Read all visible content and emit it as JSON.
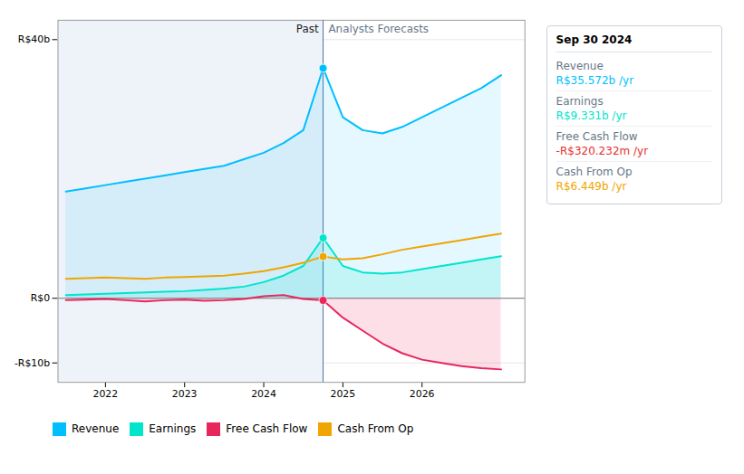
{
  "chart_data": {
    "type": "line",
    "x": [
      2021.5,
      2021.75,
      2022.0,
      2022.25,
      2022.5,
      2022.75,
      2023.0,
      2023.25,
      2023.5,
      2023.75,
      2024.0,
      2024.25,
      2024.5,
      2024.75,
      2025.0,
      2025.25,
      2025.5,
      2025.75,
      2026.0,
      2026.25,
      2026.5,
      2026.75,
      2027.0
    ],
    "series": [
      {
        "name": "Revenue",
        "color": "#00bfff",
        "values": [
          16.5,
          17.0,
          17.5,
          18.0,
          18.5,
          19.0,
          19.5,
          20.0,
          20.5,
          21.5,
          22.5,
          24.0,
          26.0,
          35.572,
          28.0,
          26.0,
          25.5,
          26.5,
          28.0,
          29.5,
          31.0,
          32.5,
          34.5
        ]
      },
      {
        "name": "Earnings",
        "color": "#00e5cc",
        "values": [
          0.5,
          0.6,
          0.7,
          0.8,
          0.9,
          1.0,
          1.1,
          1.3,
          1.5,
          1.8,
          2.5,
          3.5,
          5.0,
          9.331,
          5.0,
          4.0,
          3.8,
          4.0,
          4.5,
          5.0,
          5.5,
          6.0,
          6.5
        ]
      },
      {
        "name": "Free Cash Flow",
        "color": "#e8265e",
        "values": [
          -0.3,
          -0.2,
          -0.1,
          -0.3,
          -0.5,
          -0.3,
          -0.2,
          -0.4,
          -0.3,
          -0.1,
          0.3,
          0.5,
          -0.1,
          -0.32,
          -3.0,
          -5.0,
          -7.0,
          -8.5,
          -9.5,
          -10.0,
          -10.5,
          -10.8,
          -11.0
        ]
      },
      {
        "name": "Cash From Op",
        "color": "#f0a500",
        "values": [
          3.0,
          3.1,
          3.2,
          3.1,
          3.0,
          3.2,
          3.3,
          3.4,
          3.5,
          3.8,
          4.2,
          4.8,
          5.5,
          6.449,
          6.0,
          6.2,
          6.8,
          7.5,
          8.0,
          8.5,
          9.0,
          9.5,
          10.0
        ]
      }
    ],
    "xlim": [
      2021.4,
      2027.3
    ],
    "xticks": [
      2022,
      2023,
      2024,
      2025,
      2026
    ],
    "ylim": [
      -13,
      43
    ],
    "yticks": [
      {
        "value": -10,
        "label": "-R$10b"
      },
      {
        "value": 0,
        "label": "R$0"
      },
      {
        "value": 40,
        "label": "R$40b"
      }
    ],
    "grid": true,
    "legend": "bottom",
    "annotations": [
      {
        "text": "Past",
        "x": 2024.75
      },
      {
        "text": "Analysts Forecasts",
        "x": 2024.75
      },
      {
        "text": "Sep 30 2024",
        "x": 2024.75
      },
      {
        "label": "Revenue",
        "text": "R$35.572b /yr",
        "color": "#00bfff"
      },
      {
        "label": "Earnings",
        "text": "R$9.331b /yr",
        "color": "#00e5cc"
      },
      {
        "label": "Free Cash Flow",
        "text": "-R$320.232m /yr",
        "color": "#e83030"
      },
      {
        "label": "Cash From Op",
        "text": "R$6.449b /yr",
        "color": "#f0a500"
      }
    ]
  }
}
